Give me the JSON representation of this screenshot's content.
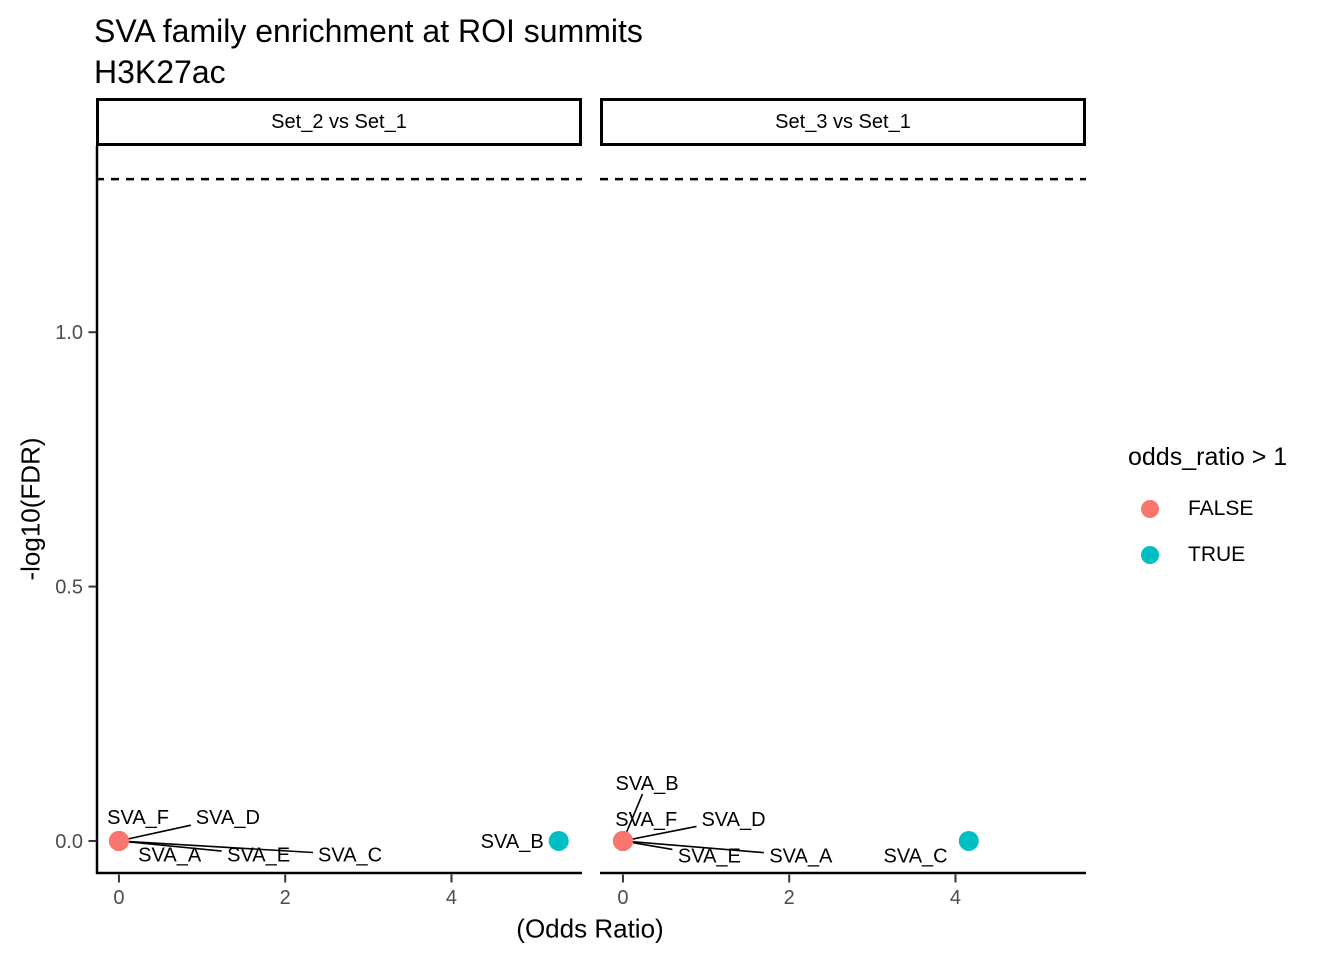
{
  "title": "SVA family enrichment at ROI summits",
  "subtitle": "H3K27ac",
  "axes": {
    "x_label": "(Odds Ratio)",
    "y_label": "-log10(FDR)"
  },
  "legend": {
    "title": "odds_ratio > 1",
    "entries": [
      {
        "label": "FALSE",
        "color": "#F8766D"
      },
      {
        "label": "TRUE",
        "color": "#00BFC4"
      }
    ]
  },
  "chart_data": {
    "type": "scatter",
    "title": "SVA family enrichment at ROI summits",
    "subtitle": "H3K27ac",
    "xlabel": "(Odds Ratio)",
    "ylabel": "-log10(FDR)",
    "xlim": [
      -0.276,
      5.57
    ],
    "ylim": [
      -0.061,
      1.366
    ],
    "grid": false,
    "legend_position": "right",
    "threshold": {
      "value": 1.301,
      "style": "dashed",
      "meaning": "FDR = 0.05"
    },
    "x_ticks": [
      {
        "value": 0,
        "label": "0"
      },
      {
        "value": 2,
        "label": "2"
      },
      {
        "value": 4,
        "label": "4"
      }
    ],
    "y_ticks": [
      {
        "value": 0.0,
        "label": "0.0"
      },
      {
        "value": 0.5,
        "label": "0.5"
      },
      {
        "value": 1.0,
        "label": "1.0"
      }
    ],
    "colors": {
      "FALSE": "#F8766D",
      "TRUE": "#00BFC4"
    },
    "facets": [
      {
        "label": "Set_2 vs Set_1",
        "points": [
          {
            "family": "SVA_F",
            "odds_ratio": 0,
            "neglog10_fdr": 0,
            "enriched": "FALSE",
            "label_x": 0.23,
            "label_y": 0.047,
            "leader": false
          },
          {
            "family": "SVA_D",
            "odds_ratio": 0,
            "neglog10_fdr": 0,
            "enriched": "FALSE",
            "label_x": 1.31,
            "label_y": 0.047,
            "leader": true
          },
          {
            "family": "SVA_A",
            "odds_ratio": 0,
            "neglog10_fdr": 0,
            "enriched": "FALSE",
            "label_x": 0.61,
            "label_y": -0.027,
            "leader": false
          },
          {
            "family": "SVA_E",
            "odds_ratio": 0,
            "neglog10_fdr": 0,
            "enriched": "FALSE",
            "label_x": 1.68,
            "label_y": -0.027,
            "leader": true
          },
          {
            "family": "SVA_C",
            "odds_ratio": 0,
            "neglog10_fdr": 0,
            "enriched": "FALSE",
            "label_x": 2.78,
            "label_y": -0.027,
            "leader": true
          },
          {
            "family": "SVA_B",
            "odds_ratio": 5.29,
            "neglog10_fdr": 0,
            "enriched": "TRUE",
            "label_x": 4.73,
            "label_y": 0.0,
            "leader": false
          }
        ]
      },
      {
        "label": "Set_3 vs Set_1",
        "points": [
          {
            "family": "SVA_B",
            "odds_ratio": 0,
            "neglog10_fdr": 0,
            "enriched": "FALSE",
            "label_x": 0.29,
            "label_y": 0.114,
            "leader": true
          },
          {
            "family": "SVA_F",
            "odds_ratio": 0,
            "neglog10_fdr": 0,
            "enriched": "FALSE",
            "label_x": 0.28,
            "label_y": 0.043,
            "leader": false
          },
          {
            "family": "SVA_D",
            "odds_ratio": 0,
            "neglog10_fdr": 0,
            "enriched": "FALSE",
            "label_x": 1.33,
            "label_y": 0.043,
            "leader": true
          },
          {
            "family": "SVA_E",
            "odds_ratio": 0,
            "neglog10_fdr": 0,
            "enriched": "FALSE",
            "label_x": 1.04,
            "label_y": -0.029,
            "leader": true
          },
          {
            "family": "SVA_A",
            "odds_ratio": 0,
            "neglog10_fdr": 0,
            "enriched": "FALSE",
            "label_x": 2.14,
            "label_y": -0.029,
            "leader": true
          },
          {
            "family": "SVA_C",
            "odds_ratio": 4.16,
            "neglog10_fdr": 0,
            "enriched": "TRUE",
            "label_x": 3.52,
            "label_y": -0.029,
            "leader": false
          }
        ]
      }
    ]
  }
}
